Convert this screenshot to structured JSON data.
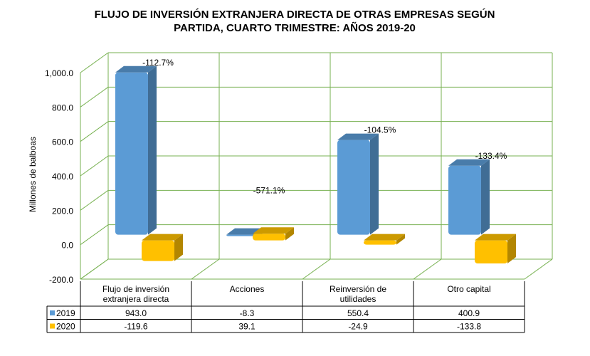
{
  "chart_data": {
    "type": "bar",
    "title_lines": [
      "FLUJO DE INVERSIÓN EXTRANJERA DIRECTA DE OTRAS EMPRESAS SEGÚN",
      "PARTIDA, CUARTO TRIMESTRE: AÑOS 2019-20"
    ],
    "ylabel": "Millones de balboas",
    "ylim": [
      -200,
      1000
    ],
    "yticks": [
      "-200.0",
      "0.0",
      "200.0",
      "400.0",
      "600.0",
      "800.0",
      "1,000.0"
    ],
    "ytick_values": [
      -200,
      0,
      200,
      400,
      600,
      800,
      1000
    ],
    "categories": [
      [
        "Flujo de inversión",
        "extranjera directa"
      ],
      [
        "Acciones"
      ],
      [
        "Reinversión de",
        "utilidades"
      ],
      [
        "Otro capital"
      ]
    ],
    "series": [
      {
        "name": "2019",
        "color": "#5B9BD5",
        "values": [
          943.0,
          -8.3,
          550.4,
          400.9
        ],
        "labels": [
          "943.0",
          "-8.3",
          "550.4",
          "400.9"
        ]
      },
      {
        "name": "2020",
        "color": "#FFC000",
        "values": [
          -119.6,
          39.1,
          -24.9,
          -133.8
        ],
        "labels": [
          "-119.6",
          "39.1",
          "-24.9",
          "-133.8"
        ]
      }
    ],
    "annotations": [
      "-112.7%",
      "-571.1%",
      "-104.5%",
      "-133.4%"
    ],
    "grid": true,
    "gridColor": "#77B150",
    "data_table": true
  }
}
